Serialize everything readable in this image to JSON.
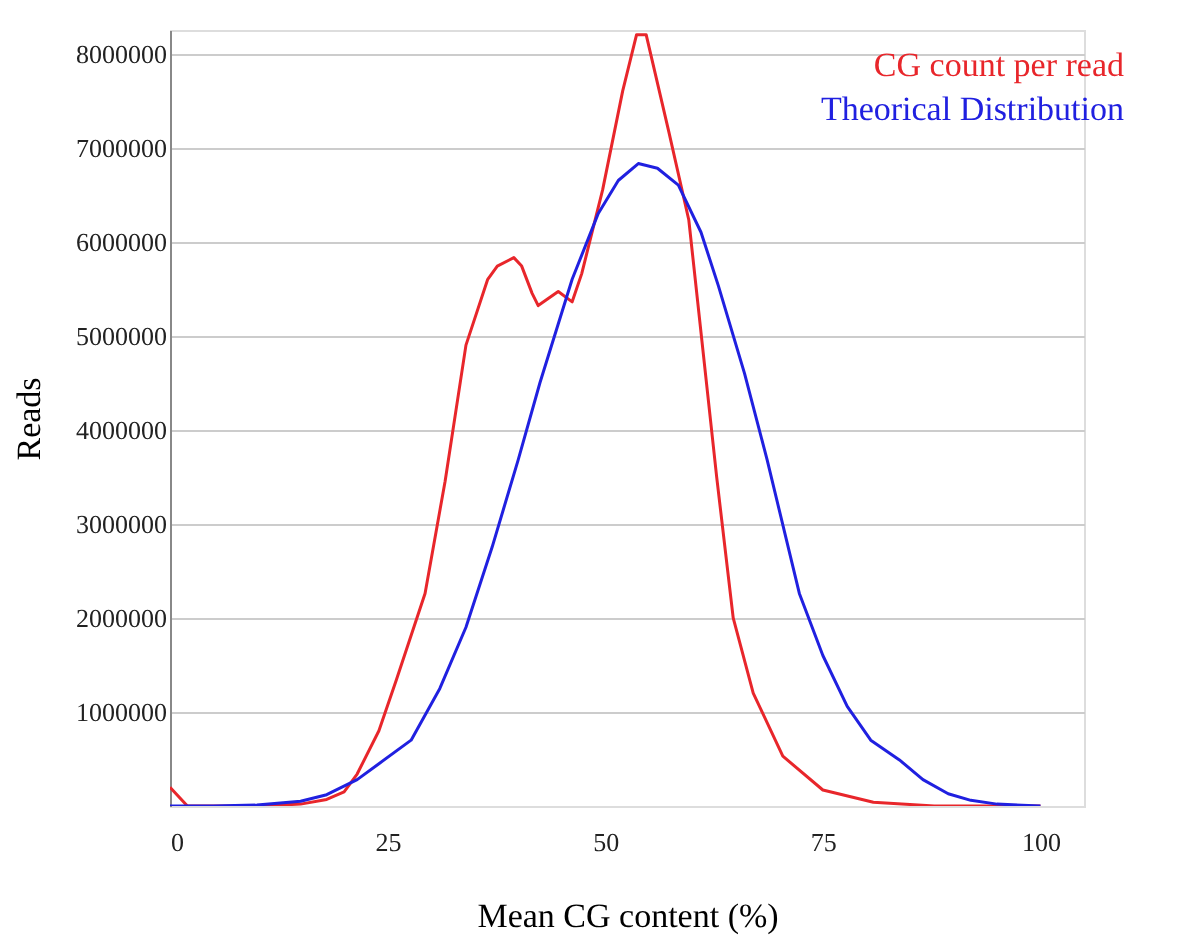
{
  "chart_data": {
    "type": "line",
    "xlabel": "Mean CG content (%)",
    "ylabel": "Reads",
    "xlim": [
      0,
      105
    ],
    "xticks": [
      0,
      25,
      50,
      75,
      100
    ],
    "ylim": [
      0,
      8250000
    ],
    "yticks": [
      1000000,
      2000000,
      3000000,
      4000000,
      5000000,
      6000000,
      7000000,
      8000000
    ],
    "grid": "y",
    "legend": "top right",
    "marker": "none",
    "line_style": "solid",
    "series": [
      {
        "name": "CG count per read",
        "color": "#e8262b",
        "x": [
          0,
          2,
          5,
          10,
          15,
          18,
          20,
          21.5,
          24,
          26,
          29.3,
          31.6,
          34,
          36.5,
          37.6,
          39.5,
          40.4,
          41.6,
          42.3,
          44.6,
          46.2,
          47.3,
          49.7,
          52,
          53.6,
          54.7,
          57.3,
          59.6,
          62.8,
          64.7,
          67,
          70.4,
          75,
          80.8,
          87.8,
          100
        ],
        "values": [
          200000,
          0,
          0,
          0,
          20000,
          70000,
          150000,
          340000,
          800000,
          1340000,
          2260000,
          3450000,
          4900000,
          5600000,
          5740000,
          5830000,
          5740000,
          5450000,
          5320000,
          5470000,
          5360000,
          5660000,
          6550000,
          7600000,
          8200000,
          8200000,
          7170000,
          6230000,
          3500000,
          2000000,
          1200000,
          530000,
          170000,
          40000,
          0,
          0
        ]
      },
      {
        "name": "Theorical Distribution",
        "color": "#2020e0",
        "x": [
          0,
          5,
          10,
          15,
          18,
          21.5,
          24,
          27.7,
          31,
          34,
          37,
          40,
          42.5,
          46.2,
          49.2,
          51.5,
          53.8,
          56,
          58.4,
          61,
          63,
          66,
          68.6,
          72.3,
          75,
          77.8,
          80.5,
          83.8,
          86.5,
          89.4,
          92,
          95,
          100
        ],
        "values": [
          0,
          0,
          10000,
          50000,
          120000,
          280000,
          450000,
          700000,
          1250000,
          1900000,
          2750000,
          3680000,
          4500000,
          5600000,
          6300000,
          6650000,
          6830000,
          6780000,
          6600000,
          6100000,
          5530000,
          4600000,
          3680000,
          2260000,
          1600000,
          1060000,
          700000,
          490000,
          280000,
          130000,
          60000,
          20000,
          0
        ]
      }
    ]
  }
}
